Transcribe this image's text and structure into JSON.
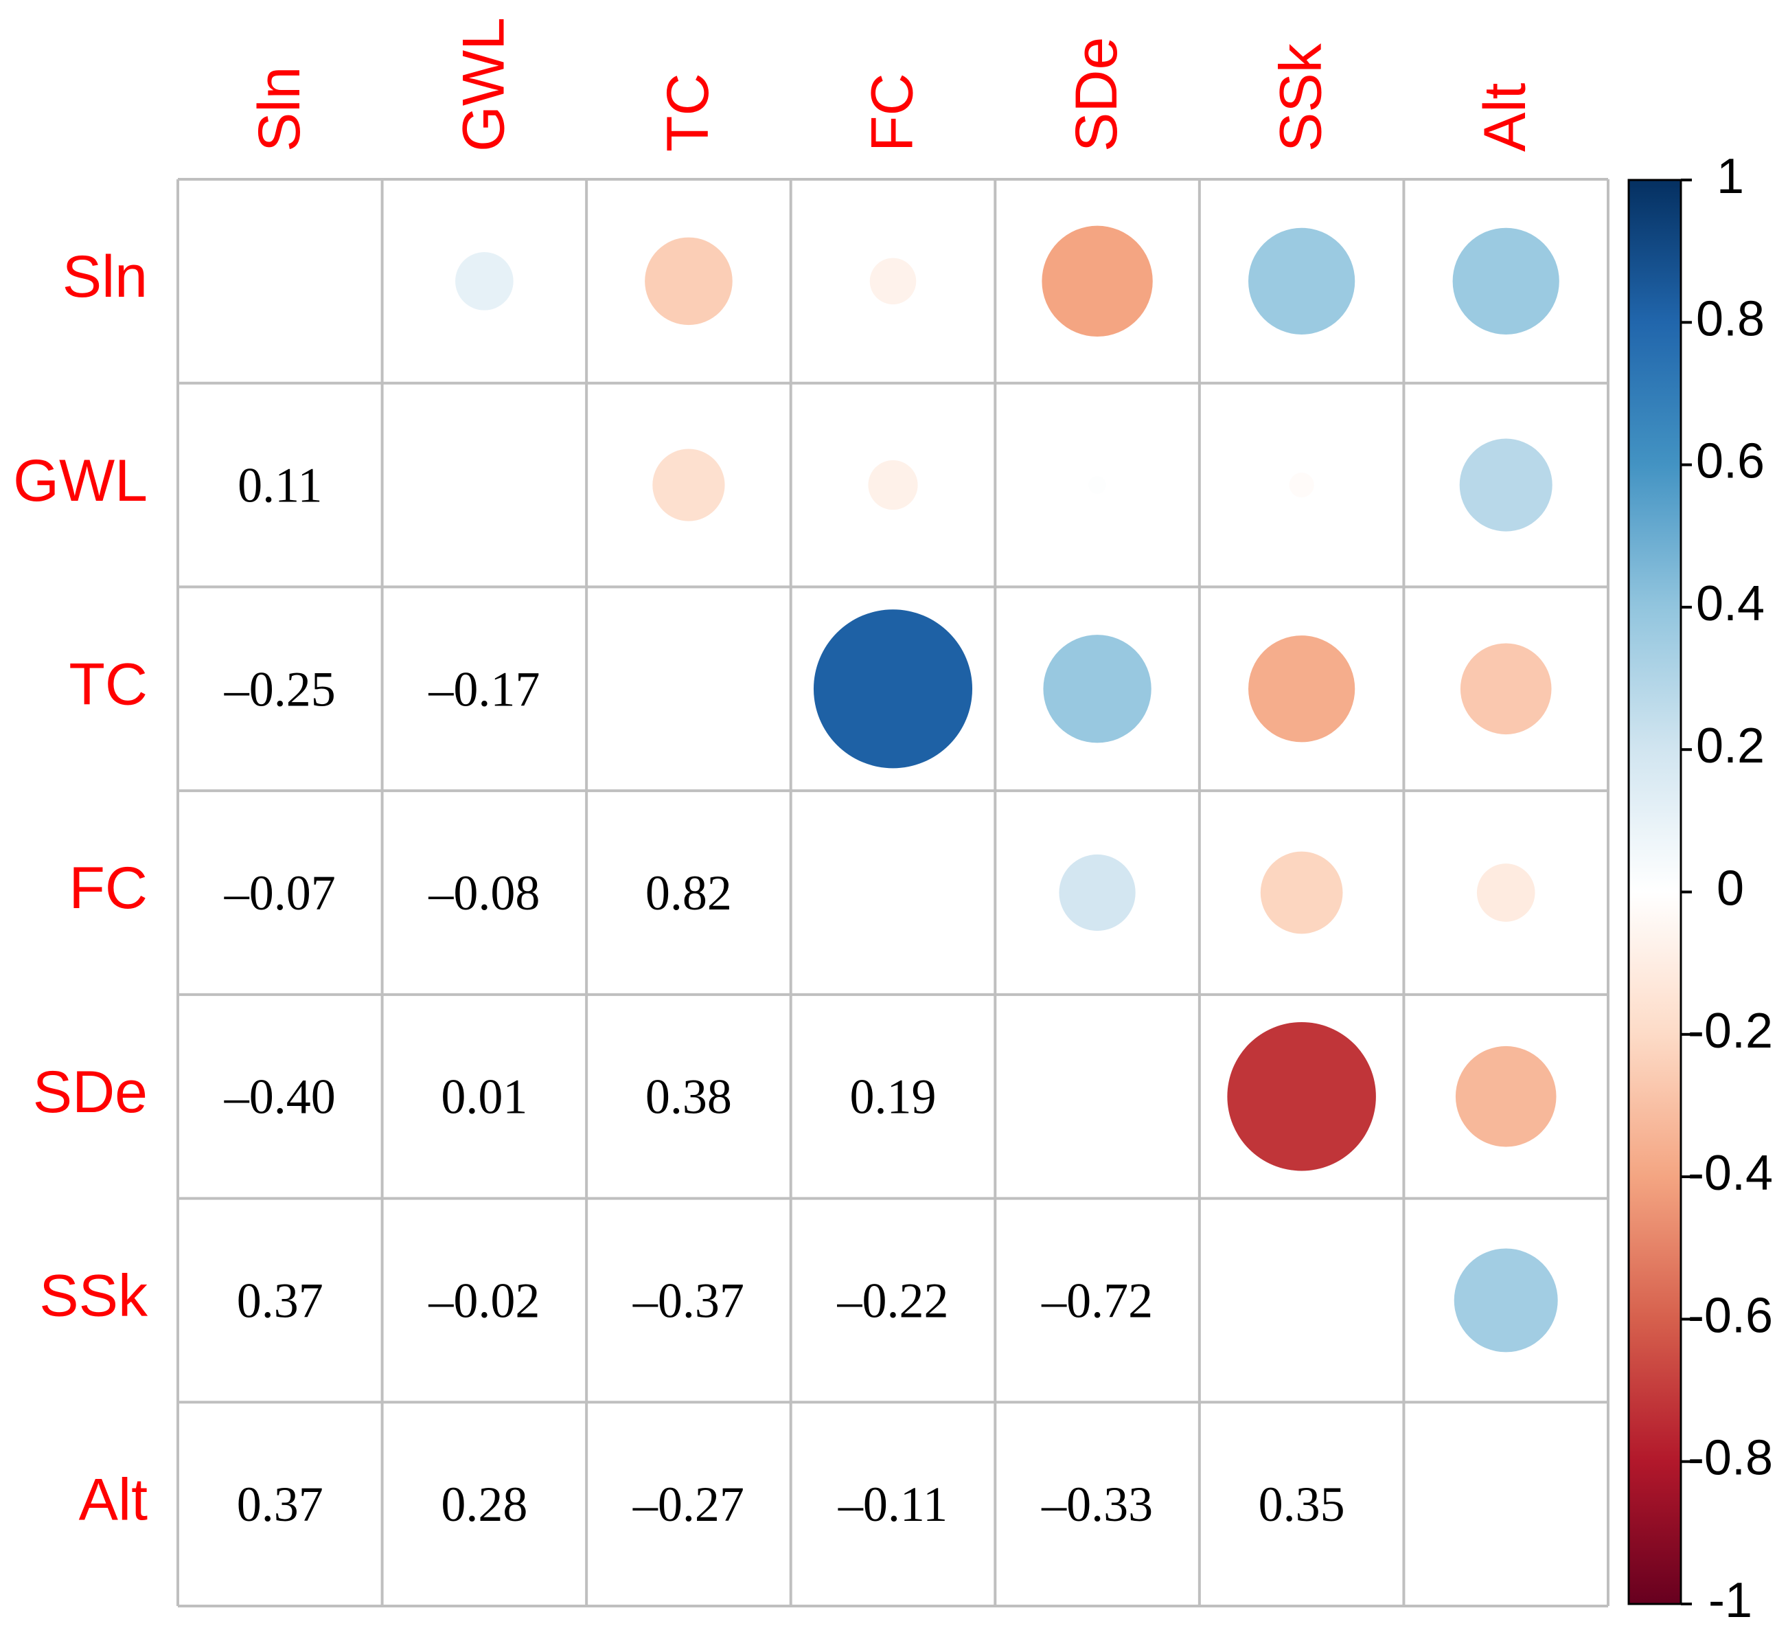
{
  "chart_data": {
    "type": "heatmap",
    "variables": [
      "Sln",
      "GWL",
      "TC",
      "FC",
      "SDe",
      "SSk",
      "Alt"
    ],
    "matrix": [
      [
        null,
        0.11,
        -0.25,
        -0.07,
        -0.4,
        0.37,
        0.37
      ],
      [
        0.11,
        null,
        -0.17,
        -0.08,
        0.01,
        -0.02,
        0.28
      ],
      [
        -0.25,
        -0.17,
        null,
        0.82,
        0.38,
        -0.37,
        -0.27
      ],
      [
        -0.07,
        -0.08,
        0.82,
        null,
        0.19,
        -0.22,
        -0.11
      ],
      [
        -0.4,
        0.01,
        0.38,
        0.19,
        null,
        -0.72,
        -0.33
      ],
      [
        0.37,
        -0.02,
        -0.37,
        -0.22,
        -0.72,
        null,
        0.35
      ],
      [
        0.37,
        0.28,
        -0.27,
        -0.11,
        -0.33,
        0.35,
        null
      ]
    ],
    "upper": "circle",
    "lower": "number",
    "colorbar": {
      "ticks": [
        1,
        0.8,
        0.6,
        0.4,
        0.2,
        0,
        -0.2,
        -0.4,
        -0.6,
        -0.8,
        -1
      ],
      "tick_labels": [
        "1",
        "0.8",
        "0.6",
        "0.4",
        "0.2",
        "0",
        "-0.2",
        "-0.4",
        "-0.6",
        "-0.8",
        "-1"
      ],
      "range": [
        -1,
        1
      ],
      "colors": [
        "#67001f",
        "#b2182b",
        "#d6604d",
        "#f4a582",
        "#fddbc7",
        "#ffffff",
        "#d1e5f0",
        "#92c5de",
        "#4393c3",
        "#2166ac",
        "#053061"
      ]
    },
    "label_color": "#ff0000",
    "grid_color": "#bfbfbf"
  }
}
